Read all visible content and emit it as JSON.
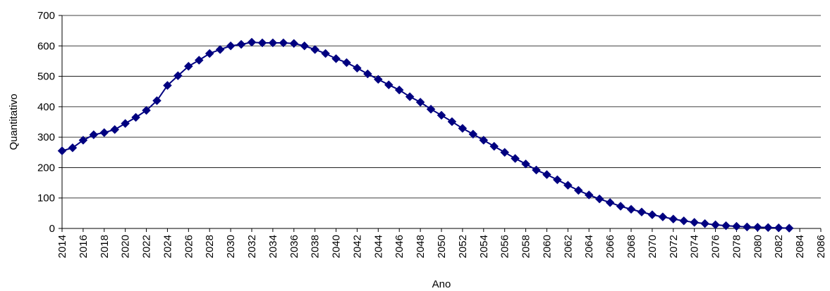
{
  "chart_data": {
    "type": "line",
    "xlabel": "Ano",
    "ylabel": "Quantitativo",
    "xlim": [
      2014,
      2086
    ],
    "ylim": [
      0,
      700
    ],
    "x_ticks": [
      2014,
      2016,
      2018,
      2020,
      2022,
      2024,
      2026,
      2028,
      2030,
      2032,
      2034,
      2036,
      2038,
      2040,
      2042,
      2044,
      2046,
      2048,
      2050,
      2052,
      2054,
      2056,
      2058,
      2060,
      2062,
      2064,
      2066,
      2068,
      2070,
      2072,
      2074,
      2076,
      2078,
      2080,
      2082,
      2084,
      2086
    ],
    "x_tick_labels": [
      "2014",
      "2016",
      "2018",
      "2020",
      "2022",
      "2024",
      "2026",
      "2028",
      "2030",
      "2032",
      "2034",
      "2036",
      "2038",
      "2040",
      "2042",
      "2044",
      "2046",
      "2048",
      "2050",
      "2052",
      "2054",
      "2056",
      "2058",
      "2060",
      "2062",
      "2064",
      "2066",
      "2068",
      "2070",
      "2072",
      "2074",
      "2076",
      "2078",
      "2080",
      "2082",
      "2084",
      "2086"
    ],
    "y_ticks": [
      0,
      100,
      200,
      300,
      400,
      500,
      600,
      700
    ],
    "y_tick_labels": [
      "0",
      "100",
      "200",
      "300",
      "400",
      "500",
      "600",
      "700"
    ],
    "grid": "horizontal",
    "legend": "none",
    "series": [
      {
        "color": "#000080",
        "marker": "diamond",
        "x": [
          2014,
          2015,
          2016,
          2017,
          2018,
          2019,
          2020,
          2021,
          2022,
          2023,
          2024,
          2025,
          2026,
          2027,
          2028,
          2029,
          2030,
          2031,
          2032,
          2033,
          2034,
          2035,
          2036,
          2037,
          2038,
          2039,
          2040,
          2041,
          2042,
          2043,
          2044,
          2045,
          2046,
          2047,
          2048,
          2049,
          2050,
          2051,
          2052,
          2053,
          2054,
          2055,
          2056,
          2057,
          2058,
          2059,
          2060,
          2061,
          2062,
          2063,
          2064,
          2065,
          2066,
          2067,
          2068,
          2069,
          2070,
          2071,
          2072,
          2073,
          2074,
          2075,
          2076,
          2077,
          2078,
          2079,
          2080,
          2081,
          2082,
          2083
        ],
        "values": [
          255,
          265,
          290,
          308,
          315,
          325,
          345,
          365,
          388,
          420,
          470,
          502,
          533,
          553,
          575,
          588,
          600,
          605,
          612,
          610,
          610,
          610,
          608,
          600,
          588,
          575,
          558,
          545,
          527,
          508,
          490,
          472,
          455,
          433,
          415,
          392,
          372,
          351,
          329,
          310,
          290,
          270,
          250,
          230,
          212,
          192,
          177,
          160,
          142,
          125,
          110,
          97,
          85,
          73,
          63,
          54,
          45,
          38,
          31,
          25,
          20,
          16,
          12,
          9,
          7,
          5,
          4,
          3,
          2,
          1
        ]
      }
    ]
  }
}
